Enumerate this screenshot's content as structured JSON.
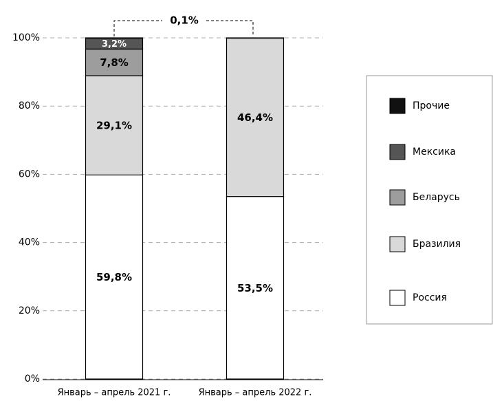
{
  "chart_data": {
    "type": "stacked_bar",
    "categories": [
      "Январь – апрель 2021 г.",
      "Январь – апрель 2022 г."
    ],
    "series": [
      {
        "name": "Россия",
        "color": "#ffffff",
        "values": [
          59.8,
          53.5
        ],
        "value_labels": [
          "59,8%",
          "53,5%"
        ]
      },
      {
        "name": "Бразилия",
        "color": "#d9d9d9",
        "values": [
          29.1,
          46.4
        ],
        "value_labels": [
          "29,1%",
          "46,4%"
        ]
      },
      {
        "name": "Беларусь",
        "color": "#9d9d9d",
        "values": [
          7.8,
          0
        ],
        "value_labels": [
          "7,8%",
          null
        ]
      },
      {
        "name": "Мексика",
        "color": "#555555",
        "values": [
          3.2,
          0
        ],
        "value_labels": [
          "3,2%",
          null
        ]
      },
      {
        "name": "Прочие",
        "color": "#111111",
        "values": [
          0.1,
          0.1
        ]
      }
    ],
    "annotation": "0,1%",
    "ylim": [
      0,
      100
    ],
    "yticks": [
      {
        "value": 0,
        "label": "0%"
      },
      {
        "value": 20,
        "label": "20%"
      },
      {
        "value": 40,
        "label": "40%"
      },
      {
        "value": 60,
        "label": "60%"
      },
      {
        "value": 80,
        "label": "80%"
      },
      {
        "value": 100,
        "label": "100%"
      }
    ],
    "grid": true,
    "legend": "right"
  }
}
